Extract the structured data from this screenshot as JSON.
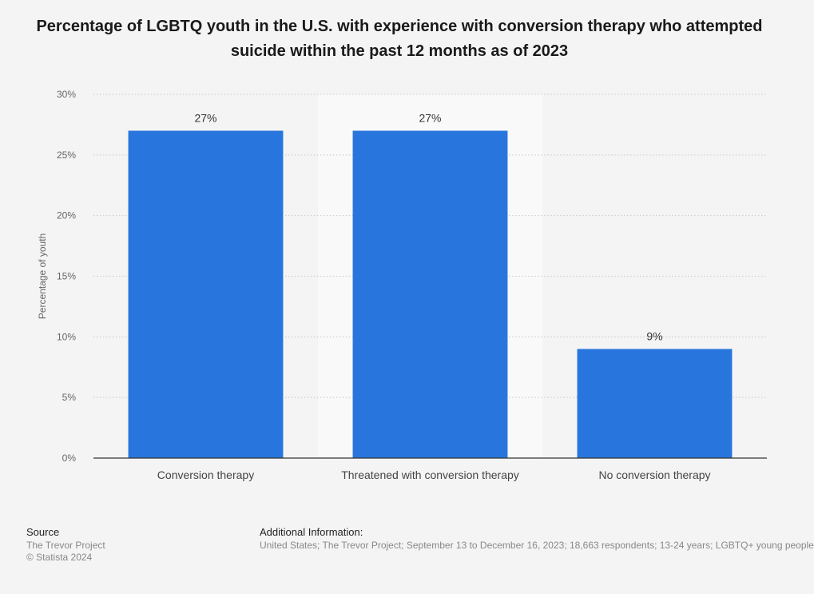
{
  "chart_data": {
    "type": "bar",
    "title": "Percentage of LGBTQ youth in the U.S. with experience with conversion therapy who attempted suicide within the past 12 months as of 2023",
    "categories": [
      "Conversion therapy",
      "Threatened with conversion therapy",
      "No conversion therapy"
    ],
    "values": [
      27,
      27,
      9
    ],
    "value_labels": [
      "27%",
      "27%",
      "9%"
    ],
    "xlabel": "",
    "ylabel": "Percentage of youth",
    "ylim": [
      0,
      30
    ],
    "yticks": [
      0,
      5,
      10,
      15,
      20,
      25,
      30
    ],
    "ytick_labels": [
      "0%",
      "5%",
      "10%",
      "15%",
      "20%",
      "25%",
      "30%"
    ],
    "grid": true,
    "highlighted_category_index": 1,
    "bar_color": "#2876dd",
    "highlight_band_color": "#f9f9f9"
  },
  "footer": {
    "source_heading": "Source",
    "source_name": "The Trevor Project",
    "copyright": "© Statista 2024",
    "info_heading": "Additional Information:",
    "info_text": "United States; The Trevor Project; September 13 to December 16, 2023; 18,663 respondents; 13-24 years; LGBTQ+ young people"
  }
}
